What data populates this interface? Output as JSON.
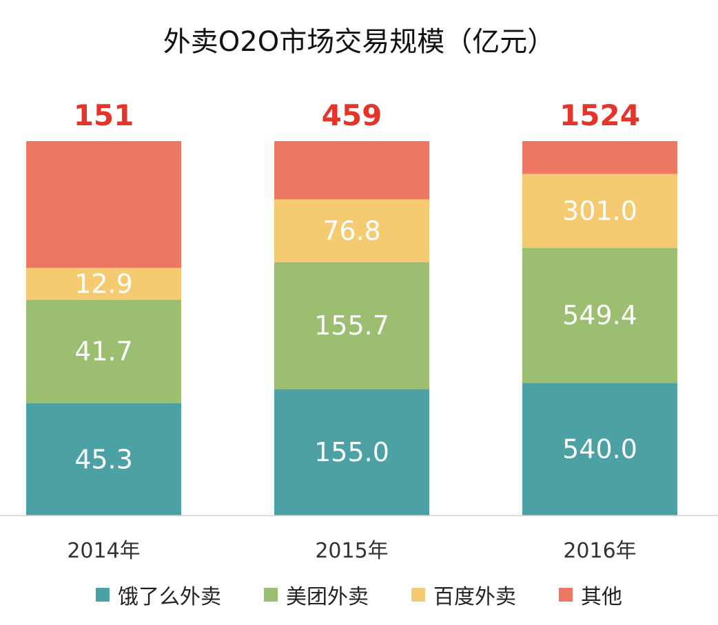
{
  "chart_data": {
    "type": "bar",
    "stacked": true,
    "title": "外卖O2O市场交易规模（亿元）",
    "categories": [
      "2014年",
      "2015年",
      "2016年"
    ],
    "totals": [
      151,
      459,
      1524
    ],
    "series": [
      {
        "name": "饿了么外卖",
        "color": "#4BA1A3",
        "values": [
          45.3,
          155.0,
          540.0
        ],
        "labels": [
          "45.3",
          "155.0",
          "540.0"
        ]
      },
      {
        "name": "美团外卖",
        "color": "#9BBE70",
        "values": [
          41.7,
          155.7,
          549.4
        ],
        "labels": [
          "41.7",
          "155.7",
          "549.4"
        ]
      },
      {
        "name": "百度外卖",
        "color": "#F4CB70",
        "values": [
          12.9,
          76.8,
          301.0
        ],
        "labels": [
          "12.9",
          "76.8",
          "301.0"
        ]
      },
      {
        "name": "其他",
        "color": "#EC7763",
        "values": [
          51.1,
          71.5,
          133.6
        ],
        "labels": [
          "",
          "",
          ""
        ]
      }
    ],
    "xlabel": "",
    "ylabel": "",
    "total_label_color": "#E5342A",
    "legend_position": "bottom"
  }
}
